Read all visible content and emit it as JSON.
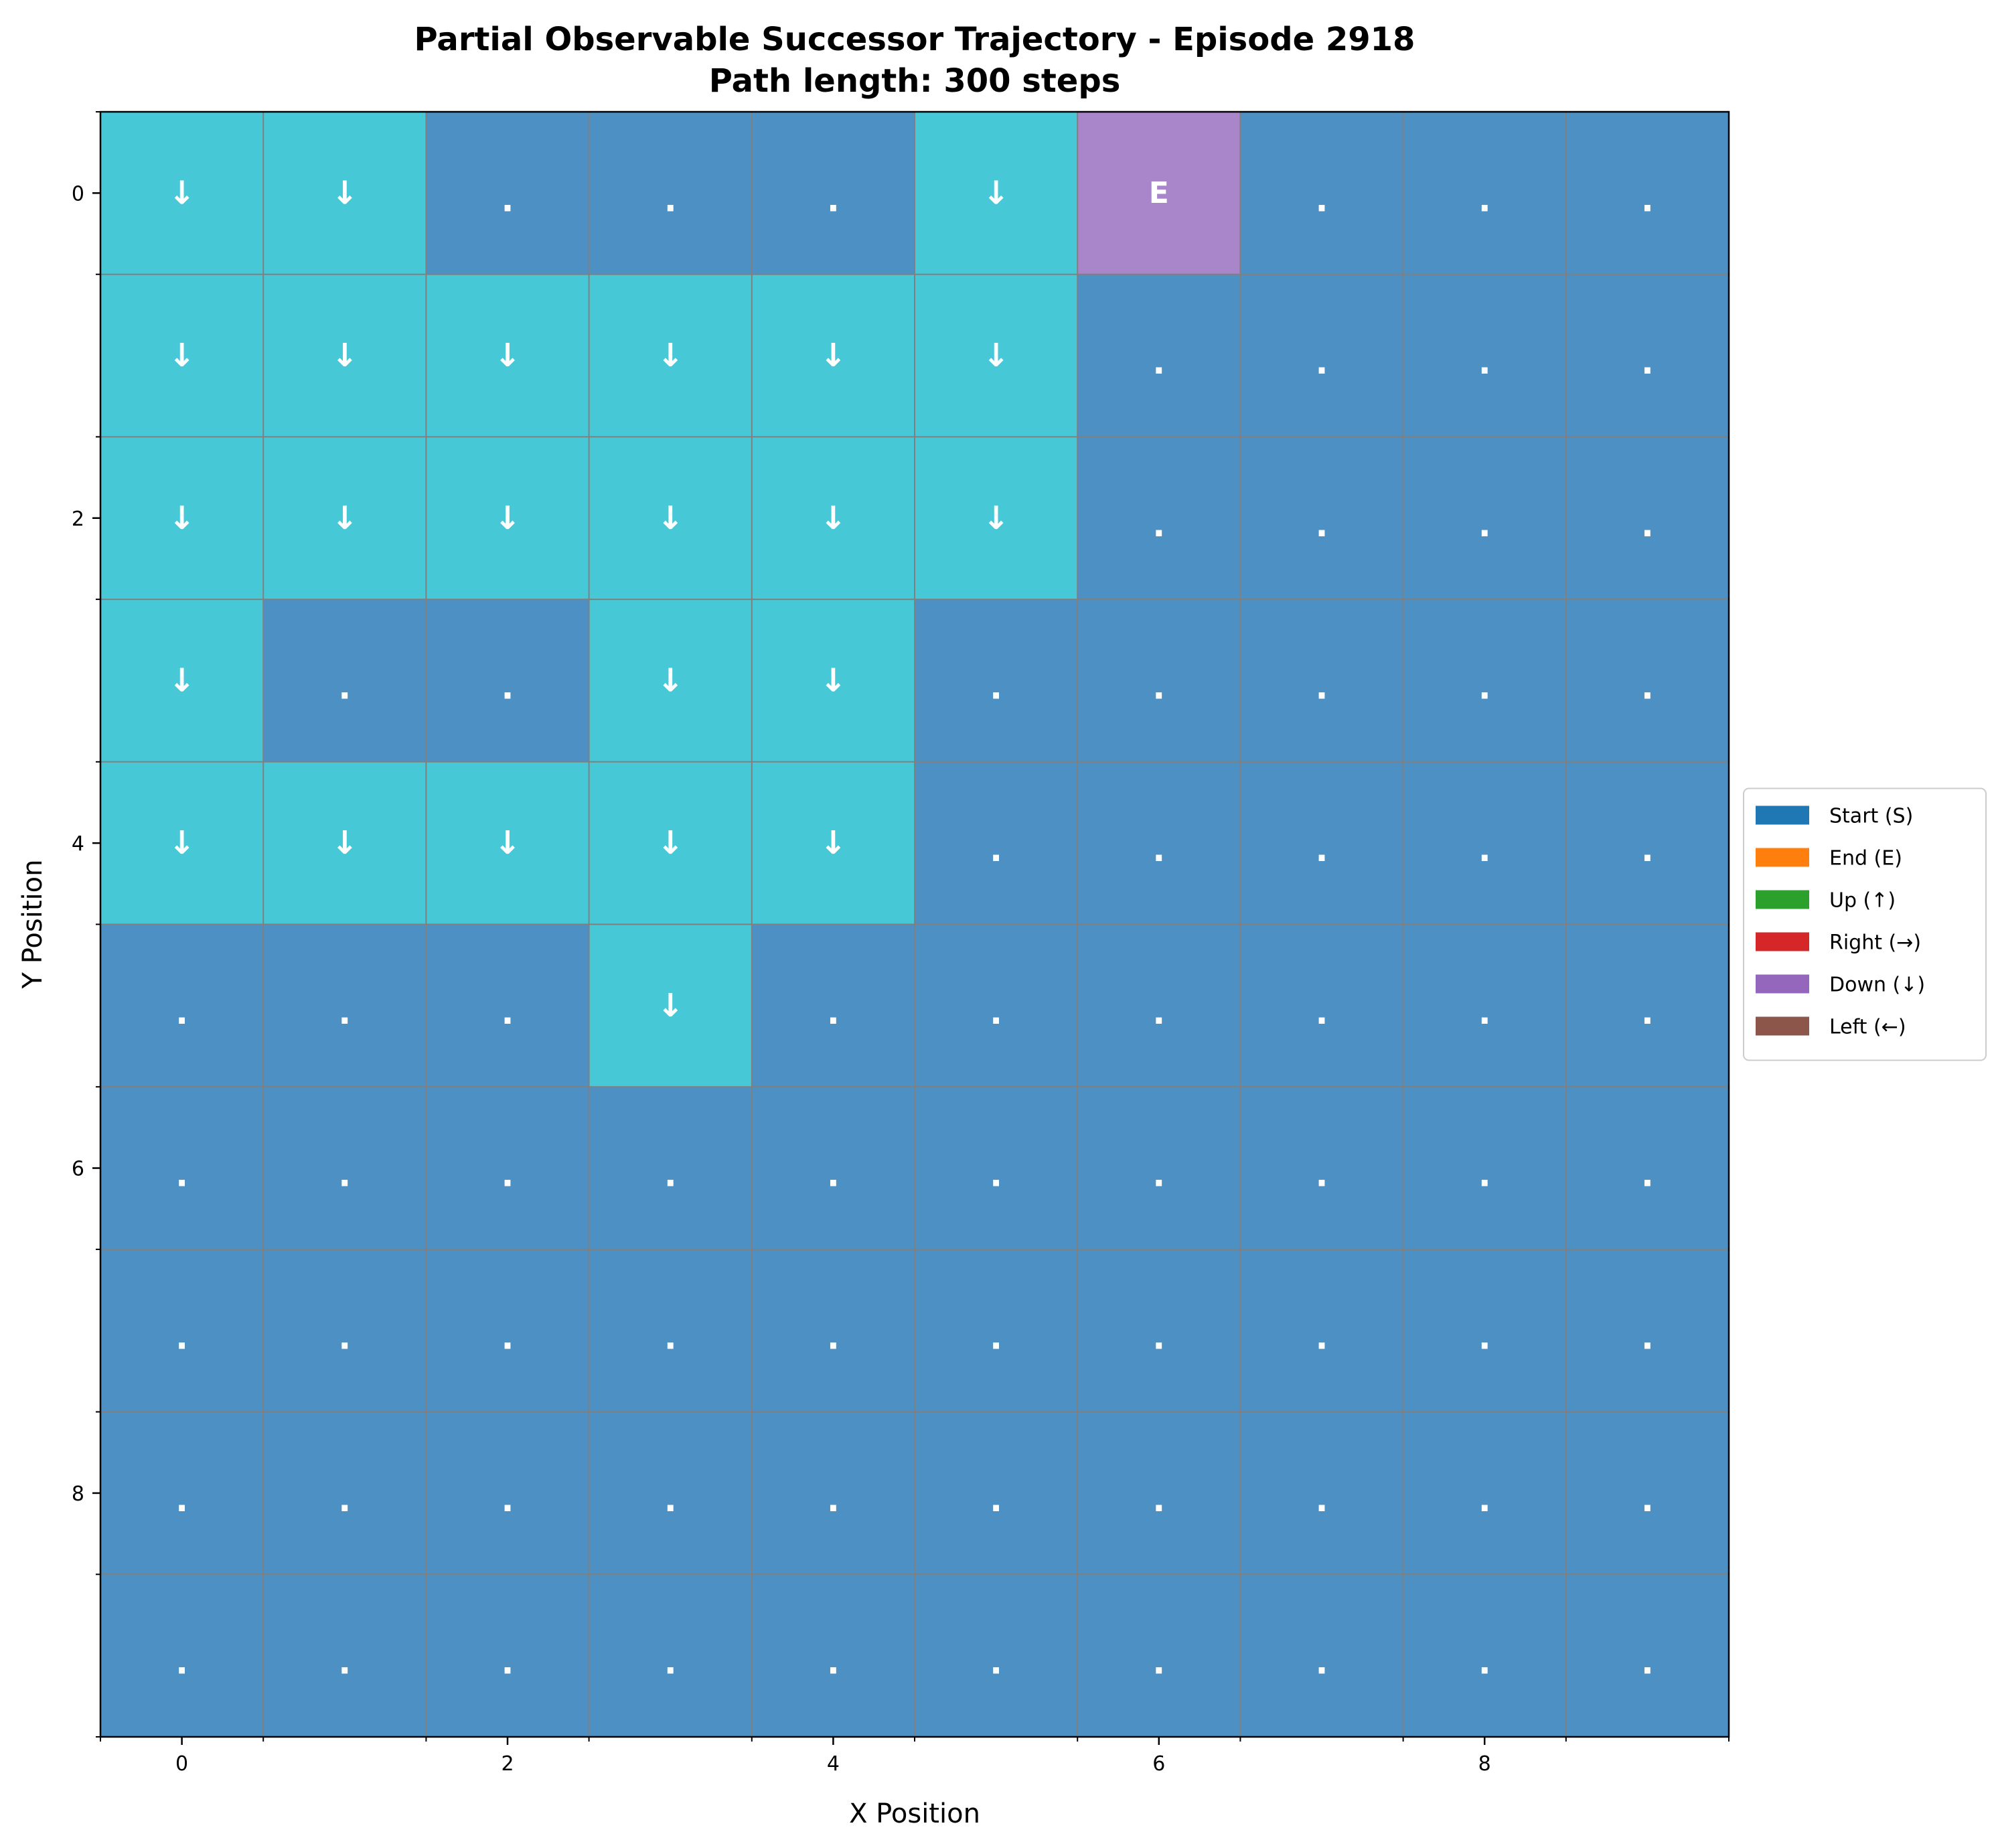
{
  "chart_data": {
    "type": "heatmap",
    "title": "Partial Observable Successor Trajectory - Episode 2918",
    "subtitle": "Path length: 300 steps",
    "xlabel": "X Position",
    "ylabel": "Y Position",
    "xlim": [
      -0.5,
      9.5
    ],
    "ylim": [
      9.5,
      -0.5
    ],
    "x_ticks": [
      0,
      2,
      4,
      6,
      8
    ],
    "y_ticks": [
      0,
      2,
      4,
      6,
      8
    ],
    "grid": true,
    "colors": {
      "visited": "#46c8d6",
      "unvisited": "#4d90c3",
      "end": "#a986c9",
      "grid_line": "#808080",
      "marker_text": "#ffffff"
    },
    "grid_cells": [
      [
        "↓",
        "↓",
        ".",
        ".",
        ".",
        "↓",
        "E",
        ".",
        ".",
        "."
      ],
      [
        "↓",
        "↓",
        "↓",
        "↓",
        "↓",
        "↓",
        ".",
        ".",
        ".",
        "."
      ],
      [
        "↓",
        "↓",
        "↓",
        "↓",
        "↓",
        "↓",
        ".",
        ".",
        ".",
        "."
      ],
      [
        "↓",
        ".",
        ".",
        "↓",
        "↓",
        ".",
        ".",
        ".",
        ".",
        "."
      ],
      [
        "↓",
        "↓",
        "↓",
        "↓",
        "↓",
        ".",
        ".",
        ".",
        ".",
        "."
      ],
      [
        ".",
        ".",
        ".",
        "↓",
        ".",
        ".",
        ".",
        ".",
        ".",
        "."
      ],
      [
        ".",
        ".",
        ".",
        ".",
        ".",
        ".",
        ".",
        ".",
        ".",
        "."
      ],
      [
        ".",
        ".",
        ".",
        ".",
        ".",
        ".",
        ".",
        ".",
        ".",
        "."
      ],
      [
        ".",
        ".",
        ".",
        ".",
        ".",
        ".",
        ".",
        ".",
        ".",
        "."
      ],
      [
        ".",
        ".",
        ".",
        ".",
        ".",
        ".",
        ".",
        ".",
        ".",
        "."
      ]
    ],
    "legend": {
      "placement": "center-right",
      "entries": [
        {
          "label": "Start (S)",
          "color": "#1f77b4"
        },
        {
          "label": "End (E)",
          "color": "#ff7f0e"
        },
        {
          "label": "Up (↑)",
          "color": "#2ca02c"
        },
        {
          "label": "Right (→)",
          "color": "#d62728"
        },
        {
          "label": "Down (↓)",
          "color": "#9467bd"
        },
        {
          "label": "Left (←)",
          "color": "#8c564b"
        }
      ]
    }
  }
}
